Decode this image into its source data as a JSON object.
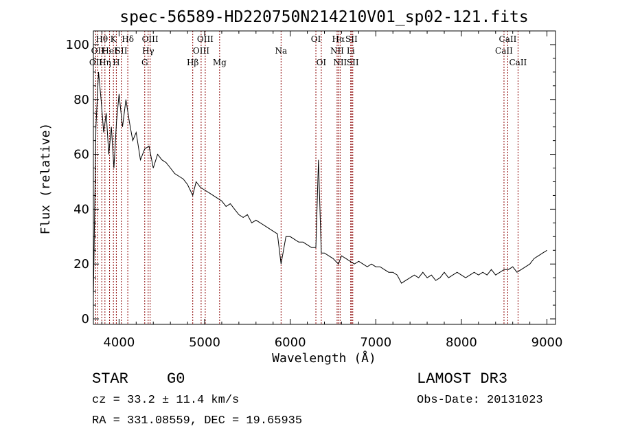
{
  "chart_data": {
    "type": "line",
    "title": "spec-56589-HD220750N214210V01_sp02-121.fits",
    "xlabel": "Wavelength (Å)",
    "ylabel": "Flux (relative)",
    "xlim": [
      3700,
      9100
    ],
    "ylim": [
      -2,
      105
    ],
    "xticks": [
      4000,
      5000,
      6000,
      7000,
      8000,
      9000
    ],
    "yticks": [
      0,
      20,
      40,
      60,
      80,
      100
    ],
    "series": [
      {
        "name": "flux",
        "x": [
          3700,
          3730,
          3760,
          3790,
          3820,
          3850,
          3880,
          3910,
          3940,
          3970,
          4000,
          4040,
          4080,
          4120,
          4160,
          4200,
          4250,
          4300,
          4350,
          4400,
          4450,
          4500,
          4550,
          4600,
          4650,
          4700,
          4750,
          4800,
          4861,
          4900,
          4950,
          5000,
          5050,
          5100,
          5150,
          5200,
          5250,
          5300,
          5350,
          5400,
          5450,
          5500,
          5550,
          5600,
          5650,
          5700,
          5750,
          5800,
          5850,
          5893,
          5950,
          6000,
          6050,
          6100,
          6150,
          6200,
          6250,
          6300,
          6330,
          6363,
          6400,
          6450,
          6500,
          6563,
          6600,
          6650,
          6700,
          6750,
          6800,
          6850,
          6900,
          6950,
          7000,
          7050,
          7100,
          7150,
          7200,
          7250,
          7300,
          7350,
          7400,
          7450,
          7500,
          7550,
          7600,
          7650,
          7700,
          7750,
          7800,
          7850,
          7900,
          7950,
          8000,
          8050,
          8100,
          8150,
          8200,
          8250,
          8300,
          8350,
          8400,
          8450,
          8500,
          8550,
          8600,
          8650,
          8700,
          8750,
          8800,
          8850,
          8900,
          8950,
          9000
        ],
        "values": [
          8,
          70,
          90,
          80,
          68,
          75,
          60,
          70,
          55,
          72,
          82,
          70,
          80,
          72,
          65,
          68,
          58,
          62,
          63,
          55,
          60,
          58,
          57,
          55,
          53,
          52,
          51,
          49,
          45,
          50,
          48,
          47,
          46,
          45,
          44,
          43,
          41,
          42,
          40,
          38,
          37,
          38,
          35,
          36,
          35,
          34,
          33,
          32,
          31,
          20,
          30,
          30,
          29,
          28,
          28,
          27,
          26,
          26,
          58,
          24,
          24,
          23,
          22,
          20,
          23,
          22,
          21,
          20,
          21,
          20,
          19,
          20,
          19,
          19,
          18,
          17,
          17,
          16,
          13,
          14,
          15,
          16,
          15,
          17,
          15,
          16,
          14,
          15,
          17,
          15,
          16,
          17,
          16,
          15,
          16,
          17,
          16,
          17,
          16,
          18,
          16,
          17,
          18,
          18,
          19,
          17,
          18,
          19,
          20,
          22,
          23,
          24,
          25
        ]
      }
    ],
    "spectral_lines": [
      {
        "wavelength": 3728,
        "label": "OII",
        "row": 3
      },
      {
        "wavelength": 3750,
        "label": "OII",
        "row": 2
      },
      {
        "wavelength": 3798,
        "label": "Hθ",
        "row": 1
      },
      {
        "wavelength": 3835,
        "label": "Hη",
        "row": 3
      },
      {
        "wavelength": 3889,
        "label": "HeI",
        "row": 2
      },
      {
        "wavelength": 3934,
        "label": "K",
        "row": 1
      },
      {
        "wavelength": 3968,
        "label": "H",
        "row": 3
      },
      {
        "wavelength": 4026,
        "label": "SII",
        "row": 2
      },
      {
        "wavelength": 4102,
        "label": "Hδ",
        "row": 1
      },
      {
        "wavelength": 4300,
        "label": "G",
        "row": 3
      },
      {
        "wavelength": 4340,
        "label": "Hγ",
        "row": 2
      },
      {
        "wavelength": 4363,
        "label": "OIII",
        "row": 1
      },
      {
        "wavelength": 4861,
        "label": "Hβ",
        "row": 3
      },
      {
        "wavelength": 4959,
        "label": "OIII",
        "row": 2
      },
      {
        "wavelength": 5007,
        "label": "OIII",
        "row": 1
      },
      {
        "wavelength": 5175,
        "label": "Mg",
        "row": 3
      },
      {
        "wavelength": 5893,
        "label": "Na",
        "row": 2
      },
      {
        "wavelength": 6300,
        "label": "OI",
        "row": 1
      },
      {
        "wavelength": 6363,
        "label": "OI",
        "row": 3
      },
      {
        "wavelength": 6548,
        "label": "NII",
        "row": 2
      },
      {
        "wavelength": 6563,
        "label": "Hα",
        "row": 1
      },
      {
        "wavelength": 6583,
        "label": "NII",
        "row": 3
      },
      {
        "wavelength": 6707,
        "label": "Li",
        "row": 2
      },
      {
        "wavelength": 6716,
        "label": "SII",
        "row": 1
      },
      {
        "wavelength": 6731,
        "label": "SII",
        "row": 3
      },
      {
        "wavelength": 8498,
        "label": "CaII",
        "row": 2
      },
      {
        "wavelength": 8542,
        "label": "CaII",
        "row": 1
      },
      {
        "wavelength": 8662,
        "label": "CaII",
        "row": 3
      }
    ],
    "colors": {
      "axis": "#000000",
      "line": "#000000",
      "marker": "#8b0000"
    }
  },
  "info": {
    "object_type": "STAR",
    "subclass": "G0",
    "survey": "LAMOST DR3",
    "cz": "cz = 33.2 ± 11.4 km/s",
    "obs_date": "Obs-Date: 20131023",
    "coords": "RA = 331.08559, DEC =  19.65935"
  }
}
